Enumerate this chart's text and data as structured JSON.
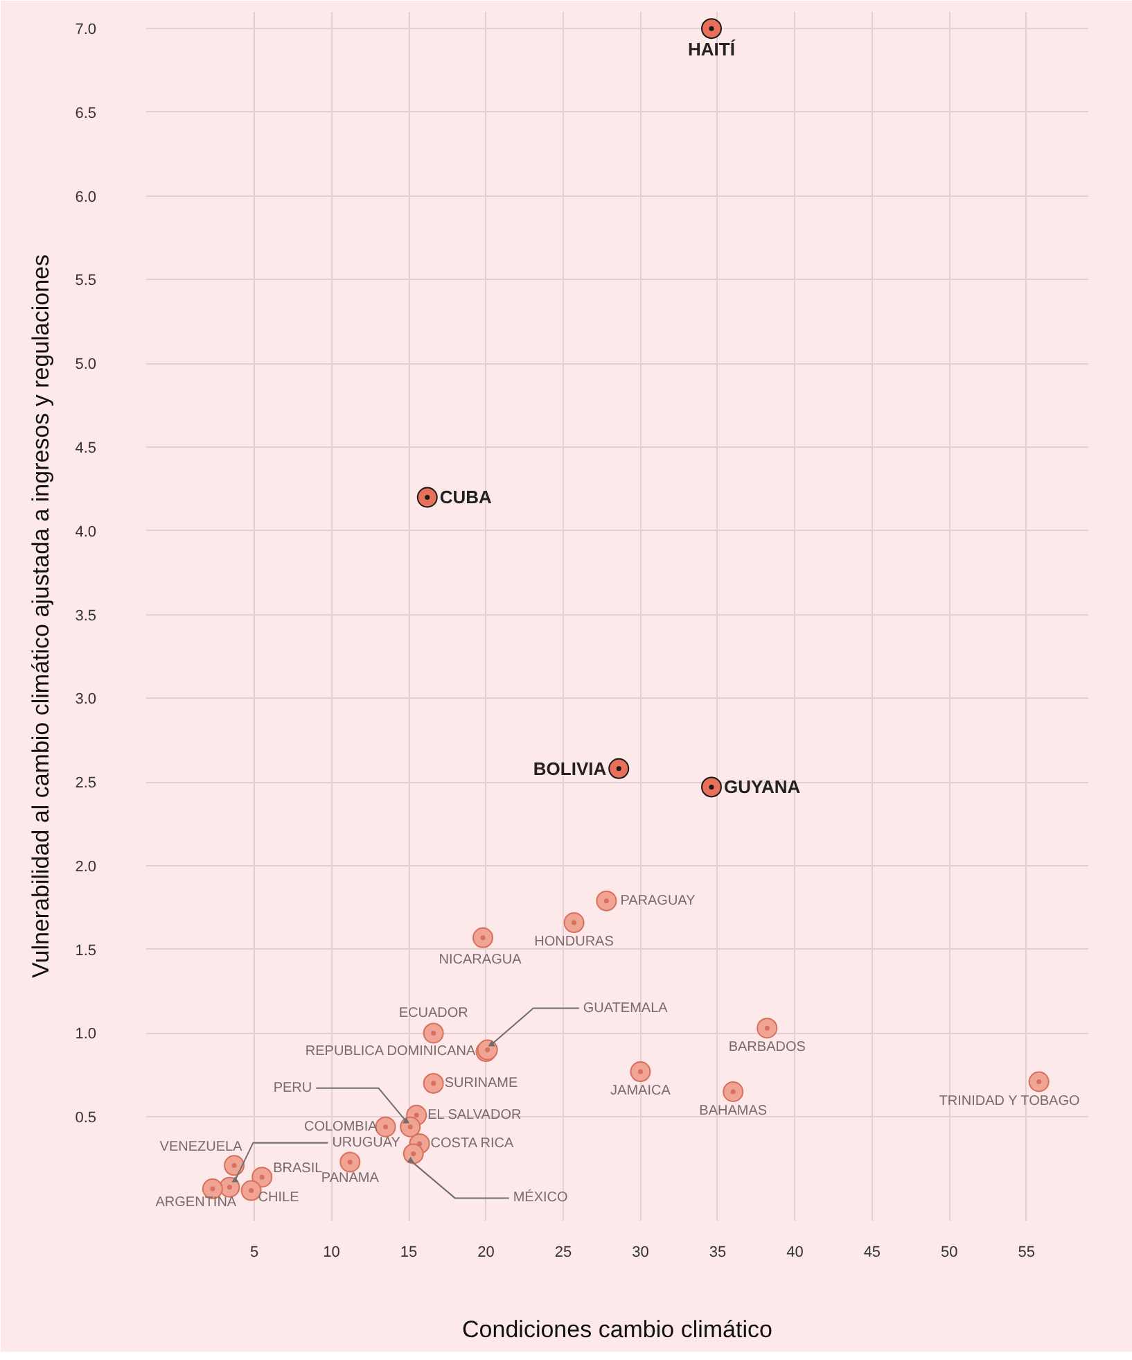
{
  "chart_data": {
    "type": "scatter",
    "xlabel": "Condiciones cambio climático",
    "ylabel": "Vulnerabilidad al cambio climático ajustada a ingresos y regulaciones",
    "xlim": [
      -2,
      59
    ],
    "ylim": [
      -0.12,
      7.1
    ],
    "xticks": [
      5,
      10,
      15,
      20,
      25,
      30,
      35,
      40,
      45,
      50,
      55
    ],
    "yticks": [
      0.5,
      {
        "value": 1,
        "label": "1.0"
      },
      1.5,
      {
        "value": 2,
        "label": "2.0"
      },
      2.5,
      {
        "value": 3,
        "label": "3.0"
      },
      3.5,
      {
        "value": 4,
        "label": "4.0"
      },
      4.5,
      {
        "value": 5,
        "label": "5.0"
      },
      5.5,
      {
        "value": 6,
        "label": "6.0"
      },
      6.5,
      {
        "value": 7,
        "label": "7.0"
      }
    ],
    "grid": true,
    "marker": "circle",
    "series": [
      {
        "color": "#e8705a",
        "x": [
          34.6,
          16.2,
          28.6,
          34.6
        ],
        "values": [
          7.0,
          4.2,
          2.58,
          2.47
        ],
        "value_labels": [
          "HAITÍ",
          "CUBA",
          "BOLIVIA",
          "GUYANA"
        ]
      },
      {
        "color": "#f0a494",
        "x": [
          27.8,
          25.7,
          19.8,
          16.6,
          20.0,
          20.1,
          16.6,
          30.0,
          36.0,
          38.2,
          55.8,
          15.5,
          15.1,
          13.5,
          15.7,
          15.3,
          11.2,
          3.4,
          3.7,
          5.5,
          2.3,
          4.8
        ],
        "values": [
          1.79,
          1.66,
          1.57,
          1.0,
          0.89,
          0.9,
          0.7,
          0.77,
          0.65,
          1.03,
          0.71,
          0.51,
          0.44,
          0.44,
          0.34,
          0.28,
          0.23,
          0.08,
          0.21,
          0.14,
          0.07,
          0.06
        ],
        "value_labels": [
          "PARAGUAY",
          "HONDURAS",
          "NICARAGUA",
          "ECUADOR",
          "REPUBLICA DOMINICANA",
          "GUATEMALA",
          "SURINAME",
          "JAMAICA",
          "BAHAMAS",
          "BARBADOS",
          "TRINIDAD Y TOBAGO",
          "EL SALVADOR",
          "PERU",
          "COLOMBIA",
          "COSTA RICA",
          "MÉXICO",
          "PANAMA",
          "URUGUAY",
          "VENEZUELA",
          "BRASIL",
          "ARGENTINA",
          "CHILE"
        ]
      }
    ]
  }
}
